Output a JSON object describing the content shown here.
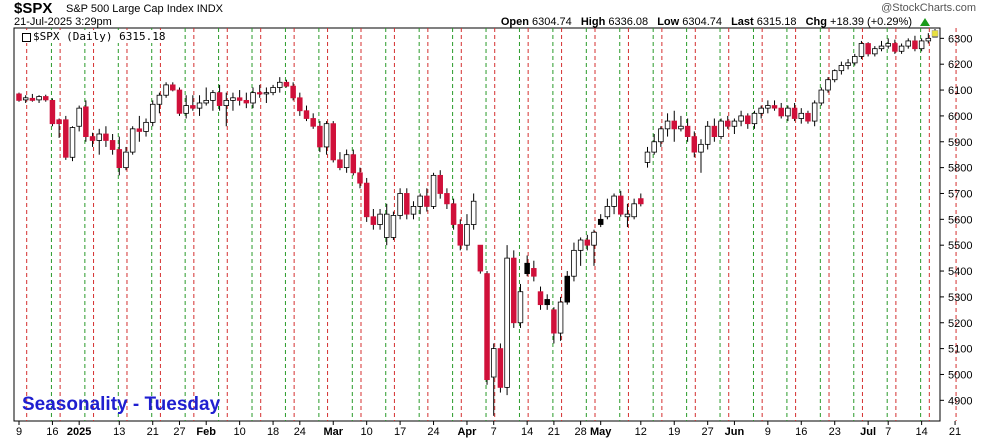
{
  "header": {
    "symbol": "$SPX",
    "name": "S&P 500 Large Cap Index",
    "name_suffix": "INDX",
    "datetime": "21-Jul-2025 3:29pm",
    "watermark": "@StockCharts.com",
    "open_label": "Open",
    "open": "6304.74",
    "high_label": "High",
    "high": "6336.08",
    "low_label": "Low",
    "low": "6304.74",
    "last_label": "Last",
    "last": "6315.18",
    "chg_label": "Chg",
    "chg": "+18.39 (+0.29%)",
    "up_color": "#1a9a1a"
  },
  "legend": {
    "text": "$SPX (Daily) 6315.18"
  },
  "annotation": "Seasonality - Tuesday",
  "colors": {
    "up": "#ffffff",
    "down": "#d0103a",
    "black": "#000000",
    "red_line": "#d43030",
    "green_line": "#2a9a2a"
  },
  "chart_data": {
    "type": "candlestick",
    "yaxis": {
      "min": 4820,
      "max": 6340,
      "ticks": [
        4900,
        5000,
        5100,
        5200,
        5300,
        5400,
        5500,
        5600,
        5700,
        5800,
        5900,
        6000,
        6100,
        6200,
        6300
      ]
    },
    "x_labels": [
      {
        "t": "9",
        "i": 0
      },
      {
        "t": "16",
        "i": 5
      },
      {
        "t": "2025",
        "i": 9
      },
      {
        "t": "13",
        "i": 15
      },
      {
        "t": "21",
        "i": 20
      },
      {
        "t": "27",
        "i": 24
      },
      {
        "t": "Feb",
        "i": 28
      },
      {
        "t": "10",
        "i": 33
      },
      {
        "t": "18",
        "i": 38
      },
      {
        "t": "24",
        "i": 42
      },
      {
        "t": "Mar",
        "i": 47
      },
      {
        "t": "10",
        "i": 52
      },
      {
        "t": "17",
        "i": 57
      },
      {
        "t": "24",
        "i": 62
      },
      {
        "t": "Apr",
        "i": 67
      },
      {
        "t": "7",
        "i": 71
      },
      {
        "t": "14",
        "i": 76
      },
      {
        "t": "21",
        "i": 80
      },
      {
        "t": "28",
        "i": 84
      },
      {
        "t": "May",
        "i": 87
      },
      {
        "t": "12",
        "i": 93
      },
      {
        "t": "19",
        "i": 98
      },
      {
        "t": "27",
        "i": 103
      },
      {
        "t": "Jun",
        "i": 107
      },
      {
        "t": "9",
        "i": 112
      },
      {
        "t": "16",
        "i": 117
      },
      {
        "t": "23",
        "i": 122
      },
      {
        "t": "Jul",
        "i": 127
      },
      {
        "t": "7",
        "i": 130
      },
      {
        "t": "14",
        "i": 135
      },
      {
        "t": "21",
        "i": 140
      }
    ],
    "tuesdays_red": [
      1,
      6,
      11,
      16,
      21,
      26,
      31,
      36,
      41,
      46,
      51,
      56,
      61,
      66,
      71,
      76,
      81,
      86,
      91,
      96,
      101,
      106,
      111,
      116,
      121,
      126,
      131,
      136,
      140
    ],
    "mondays_green": [
      5,
      10,
      15,
      20,
      25,
      30,
      35,
      40,
      45,
      50,
      55,
      60,
      65,
      70,
      75,
      80,
      85,
      90,
      95,
      100,
      105,
      110,
      115,
      120,
      125,
      130,
      135
    ],
    "candles": [
      [
        6085,
        6090,
        6055,
        6060,
        "down"
      ],
      [
        6062,
        6080,
        6050,
        6070,
        "up"
      ],
      [
        6068,
        6085,
        6055,
        6060,
        "down"
      ],
      [
        6062,
        6080,
        6050,
        6075,
        "up"
      ],
      [
        6075,
        6082,
        6055,
        6062,
        "down"
      ],
      [
        6060,
        6068,
        5960,
        5970,
        "down"
      ],
      [
        5970,
        5990,
        5915,
        5985,
        "down"
      ],
      [
        5985,
        6000,
        5830,
        5840,
        "down"
      ],
      [
        5840,
        5960,
        5825,
        5955,
        "up"
      ],
      [
        5960,
        6040,
        5940,
        6030,
        "up"
      ],
      [
        6035,
        6060,
        5900,
        5920,
        "down"
      ],
      [
        5920,
        5935,
        5880,
        5905,
        "down"
      ],
      [
        5905,
        5950,
        5850,
        5930,
        "up"
      ],
      [
        5930,
        5960,
        5880,
        5905,
        "down"
      ],
      [
        5905,
        5930,
        5850,
        5870,
        "down"
      ],
      [
        5870,
        5920,
        5770,
        5800,
        "down"
      ],
      [
        5800,
        5880,
        5790,
        5860,
        "up"
      ],
      [
        5860,
        5960,
        5850,
        5950,
        "up"
      ],
      [
        5950,
        6000,
        5900,
        5940,
        "down"
      ],
      [
        5940,
        5990,
        5920,
        5975,
        "up"
      ],
      [
        5975,
        6060,
        5960,
        6045,
        "up"
      ],
      [
        6045,
        6090,
        6010,
        6080,
        "up"
      ],
      [
        6080,
        6130,
        6070,
        6120,
        "up"
      ],
      [
        6120,
        6130,
        6095,
        6100,
        "down"
      ],
      [
        6100,
        6110,
        6000,
        6010,
        "down"
      ],
      [
        6010,
        6080,
        5990,
        6040,
        "up"
      ],
      [
        6040,
        6080,
        6020,
        6030,
        "down"
      ],
      [
        6030,
        6080,
        6000,
        6050,
        "up"
      ],
      [
        6050,
        6110,
        6040,
        6060,
        "up"
      ],
      [
        6060,
        6100,
        6020,
        6090,
        "up"
      ],
      [
        6090,
        6120,
        6020,
        6040,
        "down"
      ],
      [
        6040,
        6090,
        5960,
        6060,
        "up"
      ],
      [
        6060,
        6090,
        6020,
        6070,
        "up"
      ],
      [
        6070,
        6100,
        6040,
        6060,
        "down"
      ],
      [
        6060,
        6090,
        6030,
        6050,
        "down"
      ],
      [
        6050,
        6110,
        6030,
        6090,
        "up"
      ],
      [
        6090,
        6120,
        6070,
        6085,
        "down"
      ],
      [
        6085,
        6110,
        6050,
        6090,
        "up"
      ],
      [
        6090,
        6120,
        6080,
        6110,
        "up"
      ],
      [
        6110,
        6150,
        6090,
        6130,
        "up"
      ],
      [
        6130,
        6140,
        6110,
        6115,
        "down"
      ],
      [
        6115,
        6130,
        6060,
        6070,
        "down"
      ],
      [
        6070,
        6090,
        6000,
        6020,
        "down"
      ],
      [
        6020,
        6040,
        5980,
        5990,
        "down"
      ],
      [
        5990,
        6010,
        5950,
        5960,
        "down"
      ],
      [
        5960,
        5980,
        5860,
        5880,
        "down"
      ],
      [
        5880,
        5980,
        5850,
        5970,
        "up"
      ],
      [
        5970,
        5980,
        5820,
        5830,
        "down"
      ],
      [
        5830,
        5860,
        5790,
        5800,
        "down"
      ],
      [
        5800,
        5870,
        5780,
        5850,
        "up"
      ],
      [
        5850,
        5870,
        5770,
        5780,
        "down"
      ],
      [
        5780,
        5800,
        5720,
        5740,
        "down"
      ],
      [
        5740,
        5760,
        5590,
        5610,
        "down"
      ],
      [
        5610,
        5640,
        5560,
        5580,
        "down"
      ],
      [
        5580,
        5640,
        5560,
        5620,
        "up"
      ],
      [
        5620,
        5660,
        5500,
        5530,
        "up"
      ],
      [
        5530,
        5630,
        5520,
        5615,
        "up"
      ],
      [
        5615,
        5720,
        5600,
        5700,
        "up"
      ],
      [
        5700,
        5720,
        5600,
        5620,
        "down"
      ],
      [
        5620,
        5670,
        5600,
        5650,
        "up"
      ],
      [
        5650,
        5700,
        5620,
        5690,
        "up"
      ],
      [
        5690,
        5720,
        5630,
        5650,
        "down"
      ],
      [
        5650,
        5780,
        5640,
        5770,
        "up"
      ],
      [
        5770,
        5790,
        5680,
        5700,
        "down"
      ],
      [
        5700,
        5720,
        5640,
        5660,
        "down"
      ],
      [
        5660,
        5680,
        5560,
        5580,
        "down"
      ],
      [
        5580,
        5600,
        5480,
        5500,
        "down"
      ],
      [
        5500,
        5620,
        5480,
        5580,
        "up"
      ],
      [
        5580,
        5700,
        5560,
        5670,
        "up"
      ],
      [
        5500,
        5500,
        5390,
        5400,
        "down"
      ],
      [
        5390,
        5400,
        4960,
        4980,
        "down"
      ],
      [
        4990,
        5120,
        4840,
        5100,
        "up"
      ],
      [
        5100,
        5120,
        4930,
        4950,
        "down"
      ],
      [
        4950,
        5500,
        4920,
        5450,
        "up"
      ],
      [
        5450,
        5480,
        5180,
        5200,
        "down"
      ],
      [
        5200,
        5350,
        5180,
        5320,
        "up"
      ],
      [
        5390,
        5460,
        5380,
        5430,
        "black"
      ],
      [
        5410,
        5440,
        5360,
        5380,
        "down"
      ],
      [
        5320,
        5340,
        5250,
        5270,
        "down"
      ],
      [
        5290,
        5310,
        5250,
        5270,
        "black"
      ],
      [
        5250,
        5260,
        5120,
        5160,
        "down"
      ],
      [
        5160,
        5300,
        5130,
        5280,
        "up"
      ],
      [
        5280,
        5400,
        5270,
        5380,
        "black"
      ],
      [
        5380,
        5510,
        5360,
        5480,
        "up"
      ],
      [
        5480,
        5530,
        5420,
        5520,
        "up"
      ],
      [
        5520,
        5540,
        5480,
        5500,
        "down"
      ],
      [
        5500,
        5560,
        5420,
        5550,
        "up"
      ],
      [
        5580,
        5620,
        5570,
        5600,
        "black"
      ],
      [
        5610,
        5680,
        5600,
        5650,
        "up"
      ],
      [
        5650,
        5700,
        5620,
        5690,
        "up"
      ],
      [
        5690,
        5710,
        5610,
        5620,
        "down"
      ],
      [
        5620,
        5660,
        5570,
        5610,
        "up"
      ],
      [
        5610,
        5680,
        5600,
        5660,
        "up"
      ],
      [
        5660,
        5700,
        5650,
        5680,
        "down"
      ],
      [
        5820,
        5880,
        5800,
        5860,
        "up"
      ],
      [
        5860,
        5930,
        5850,
        5900,
        "up"
      ],
      [
        5900,
        5960,
        5880,
        5950,
        "up"
      ],
      [
        5950,
        6010,
        5920,
        5980,
        "up"
      ],
      [
        5980,
        6020,
        5900,
        5950,
        "down"
      ],
      [
        5950,
        6000,
        5940,
        5960,
        "up"
      ],
      [
        5960,
        5990,
        5900,
        5920,
        "down"
      ],
      [
        5920,
        5940,
        5840,
        5860,
        "down"
      ],
      [
        5860,
        5910,
        5780,
        5890,
        "up"
      ],
      [
        5890,
        5980,
        5870,
        5960,
        "up"
      ],
      [
        5960,
        5990,
        5900,
        5920,
        "down"
      ],
      [
        5920,
        5990,
        5910,
        5980,
        "up"
      ],
      [
        5980,
        6000,
        5950,
        5960,
        "down"
      ],
      [
        5960,
        5990,
        5930,
        5980,
        "up"
      ],
      [
        5980,
        6020,
        5960,
        6000,
        "up"
      ],
      [
        6000,
        6010,
        5950,
        5970,
        "down"
      ],
      [
        5970,
        6020,
        5950,
        6010,
        "up"
      ],
      [
        6010,
        6040,
        5990,
        6030,
        "up"
      ],
      [
        6030,
        6060,
        6010,
        6040,
        "up"
      ],
      [
        6040,
        6060,
        6020,
        6030,
        "down"
      ],
      [
        6030,
        6050,
        5990,
        6000,
        "down"
      ],
      [
        6000,
        6040,
        5980,
        6030,
        "up"
      ],
      [
        6030,
        6050,
        5980,
        5990,
        "down"
      ],
      [
        5990,
        6030,
        5970,
        6010,
        "up"
      ],
      [
        6010,
        6020,
        5970,
        5980,
        "down"
      ],
      [
        5980,
        6060,
        5960,
        6050,
        "up"
      ],
      [
        6050,
        6110,
        6040,
        6100,
        "up"
      ],
      [
        6100,
        6150,
        6090,
        6140,
        "up"
      ],
      [
        6140,
        6180,
        6130,
        6175,
        "up"
      ],
      [
        6175,
        6210,
        6160,
        6195,
        "up"
      ],
      [
        6195,
        6220,
        6180,
        6205,
        "up"
      ],
      [
        6205,
        6240,
        6195,
        6230,
        "up"
      ],
      [
        6230,
        6290,
        6220,
        6280,
        "up"
      ],
      [
        6280,
        6285,
        6230,
        6240,
        "down"
      ],
      [
        6240,
        6270,
        6230,
        6260,
        "up"
      ],
      [
        6260,
        6290,
        6250,
        6270,
        "up"
      ],
      [
        6270,
        6300,
        6260,
        6280,
        "up"
      ],
      [
        6280,
        6295,
        6240,
        6250,
        "down"
      ],
      [
        6250,
        6280,
        6240,
        6270,
        "up"
      ],
      [
        6270,
        6300,
        6260,
        6290,
        "up"
      ],
      [
        6290,
        6310,
        6250,
        6260,
        "down"
      ],
      [
        6260,
        6300,
        6250,
        6290,
        "up"
      ],
      [
        6290,
        6320,
        6280,
        6300,
        "up"
      ],
      [
        6305,
        6336,
        6305,
        6315,
        "up"
      ]
    ]
  }
}
